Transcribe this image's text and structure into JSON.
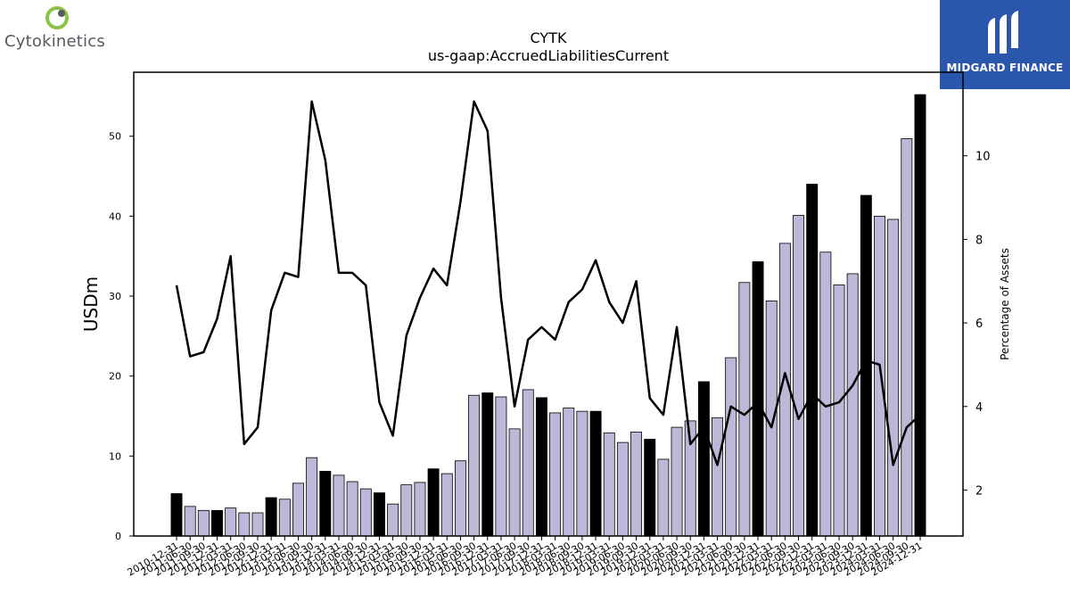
{
  "brand_left": {
    "name": "Cytokinetics",
    "icon": "cytokinetics-logo-icon",
    "color_green": "#8bc04a",
    "color_gray": "#555a60"
  },
  "brand_right": {
    "name": "MIDGARD FINANCE",
    "icon": "midgard-logo-icon",
    "background": "#2a57ad"
  },
  "chart_data": {
    "type": "bar",
    "title": "CYTK",
    "subtitle": "us-gaap:AccruedLiabilitiesCurrent",
    "ylabel": "USDm",
    "y2label": "Percentage of Assets",
    "ylim": [
      0,
      58
    ],
    "y2lim": [
      0.9,
      12.0
    ],
    "yticks": [
      0,
      10,
      20,
      30,
      40,
      50
    ],
    "y2ticks": [
      2,
      4,
      6,
      8,
      10
    ],
    "grid": false,
    "legend": "none",
    "colors": {
      "annual_bar": "#000000",
      "quarter_bar": "#bcb8d8",
      "bar_edge": "#000000",
      "line": "#000000"
    },
    "categories": [
      "2010-12-31",
      "2011-06-30",
      "2011-09-30",
      "2011-12-31",
      "2012-03-31",
      "2012-06-30",
      "2012-09-30",
      "2012-12-31",
      "2013-03-31",
      "2013-06-30",
      "2013-09-30",
      "2013-12-31",
      "2014-03-31",
      "2014-06-30",
      "2014-09-30",
      "2014-12-31",
      "2015-03-31",
      "2015-06-30",
      "2015-09-30",
      "2015-12-31",
      "2016-03-31",
      "2016-06-30",
      "2016-09-30",
      "2016-12-31",
      "2017-03-31",
      "2017-06-30",
      "2017-09-30",
      "2017-12-31",
      "2018-03-31",
      "2018-06-30",
      "2018-09-30",
      "2018-12-31",
      "2019-03-31",
      "2019-06-30",
      "2019-09-30",
      "2019-12-31",
      "2020-03-31",
      "2020-06-30",
      "2020-09-30",
      "2020-12-31",
      "2021-03-31",
      "2021-06-30",
      "2021-09-30",
      "2021-12-31",
      "2022-03-31",
      "2022-06-30",
      "2022-09-30",
      "2022-12-31",
      "2023-03-31",
      "2023-06-30",
      "2023-09-30",
      "2023-12-31",
      "2024-03-31",
      "2024-06-30",
      "2024-09-30",
      "2024-12-31"
    ],
    "series": [
      {
        "kind": "bar",
        "values": [
          5.3,
          3.7,
          3.2,
          3.2,
          3.5,
          2.9,
          2.9,
          4.8,
          4.6,
          6.6,
          9.8,
          8.1,
          7.6,
          6.8,
          5.9,
          5.4,
          4.0,
          6.4,
          6.7,
          8.4,
          7.8,
          9.4,
          17.6,
          17.9,
          17.4,
          13.4,
          18.3,
          17.3,
          15.4,
          16.0,
          15.6,
          15.6,
          12.9,
          11.7,
          13.0,
          12.1,
          9.6,
          13.6,
          14.4,
          19.3,
          14.8,
          22.3,
          31.7,
          34.3,
          29.4,
          36.6,
          40.1,
          44.0,
          35.5,
          31.4,
          32.8,
          42.6,
          40.0,
          39.6,
          49.7,
          55.2
        ],
        "annual": [
          1,
          0,
          0,
          1,
          0,
          0,
          0,
          1,
          0,
          0,
          0,
          1,
          0,
          0,
          0,
          1,
          0,
          0,
          0,
          1,
          0,
          0,
          0,
          1,
          0,
          0,
          0,
          1,
          0,
          0,
          0,
          1,
          0,
          0,
          0,
          1,
          0,
          0,
          0,
          1,
          0,
          0,
          0,
          1,
          0,
          0,
          0,
          1,
          0,
          0,
          0,
          1,
          0,
          0,
          0,
          1
        ]
      },
      {
        "kind": "line",
        "values": [
          6.9,
          5.2,
          5.3,
          6.1,
          7.6,
          3.1,
          3.5,
          6.3,
          7.2,
          7.1,
          11.3,
          9.9,
          7.2,
          7.2,
          6.9,
          4.1,
          3.3,
          5.7,
          6.6,
          7.3,
          6.9,
          8.9,
          11.3,
          10.6,
          6.6,
          4.0,
          5.6,
          5.9,
          5.6,
          6.5,
          6.8,
          7.5,
          6.5,
          6.0,
          7.0,
          4.2,
          3.8,
          5.9,
          3.1,
          3.5,
          2.6,
          4.0,
          3.8,
          4.1,
          3.5,
          4.8,
          3.7,
          4.3,
          4.0,
          4.1,
          4.5,
          5.1,
          5.0,
          2.6,
          3.5,
          3.8
        ]
      }
    ]
  }
}
